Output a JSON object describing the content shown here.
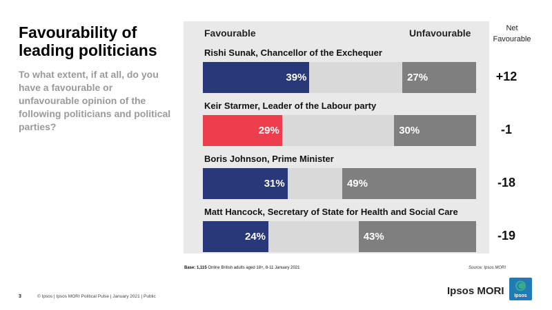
{
  "title": "Favourability of leading politicians",
  "subtitle": "To what extent, if at all, do you have a favourable or unfavourable opinion of the following politicians and political parties?",
  "headers": {
    "favourable": "Favourable",
    "unfavourable": "Unfavourable",
    "net": "Net Favourable"
  },
  "colors": {
    "conservative": "#283879",
    "labour": "#ee3e4e",
    "neutral": "#d9d9d9",
    "unfavourable": "#7f7f7f"
  },
  "chart_data": {
    "type": "bar",
    "orientation": "horizontal-stacked",
    "categories": [
      "Rishi Sunak, Chancellor of the Exchequer",
      "Keir Starmer, Leader of the Labour party",
      "Boris Johnson, Prime Minister",
      "Matt Hancock, Secretary of State for Health and Social Care"
    ],
    "series": [
      {
        "name": "Favourable",
        "values": [
          39,
          29,
          31,
          24
        ],
        "labels": [
          "39%",
          "29%",
          "31%",
          "24%"
        ]
      },
      {
        "name": "Unfavourable",
        "values": [
          27,
          30,
          49,
          43
        ],
        "labels": [
          "27%",
          "30%",
          "49%",
          "43%"
        ]
      }
    ],
    "net": [
      "+12",
      "-1",
      "-18",
      "-19"
    ],
    "bar_colors": [
      "#283879",
      "#ee3e4e",
      "#283879",
      "#283879"
    ],
    "xlim": [
      0,
      100
    ]
  },
  "base": {
    "label": "Base:",
    "count": "1,115",
    "text": "Online British adults aged 18+, 8-11 January 2021"
  },
  "source": {
    "label": "Source:",
    "value": "Ipsos MORI"
  },
  "footer": {
    "page": "3",
    "text": "© Ipsos | Ipsos MORI Political Pulse | January 2021 | Public"
  },
  "brand": {
    "name": "Ipsos MORI",
    "logo_text": "Ipsos"
  }
}
